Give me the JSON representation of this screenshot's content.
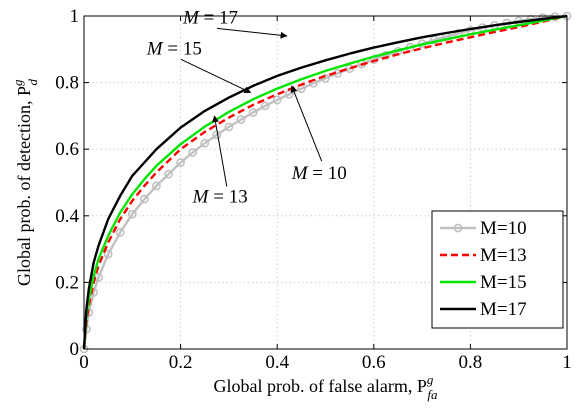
{
  "chart_data": {
    "type": "line",
    "xlabel": "Global prob. of false alarm, P",
    "xlabel_sup": "g",
    "xlabel_sub": "fa",
    "ylabel": "Global prob. of detection, P",
    "ylabel_sup": "g",
    "ylabel_sub": "d",
    "xlim": [
      0,
      1
    ],
    "ylim": [
      0,
      1
    ],
    "xticks": [
      "0",
      "0.2",
      "0.4",
      "0.6",
      "0.8",
      "1"
    ],
    "yticks": [
      "0",
      "0.2",
      "0.4",
      "0.6",
      "0.8",
      "1"
    ],
    "grid": true,
    "legend_position": "bottom-right",
    "series": [
      {
        "name": "M=10",
        "color": "#c0c0c0",
        "style": "solid-circle-markers",
        "x": [
          0,
          0.005,
          0.01,
          0.02,
          0.03,
          0.05,
          0.075,
          0.1,
          0.125,
          0.15,
          0.175,
          0.2,
          0.225,
          0.25,
          0.275,
          0.3,
          0.325,
          0.35,
          0.375,
          0.4,
          0.425,
          0.45,
          0.475,
          0.5,
          0.525,
          0.55,
          0.575,
          0.6,
          0.625,
          0.65,
          0.675,
          0.7,
          0.725,
          0.75,
          0.775,
          0.8,
          0.825,
          0.85,
          0.875,
          0.9,
          0.925,
          0.95,
          0.975,
          1
        ],
        "y": [
          0,
          0.06,
          0.11,
          0.17,
          0.215,
          0.285,
          0.35,
          0.405,
          0.45,
          0.49,
          0.525,
          0.56,
          0.59,
          0.618,
          0.643,
          0.667,
          0.689,
          0.71,
          0.73,
          0.748,
          0.765,
          0.782,
          0.798,
          0.813,
          0.828,
          0.842,
          0.856,
          0.869,
          0.882,
          0.894,
          0.906,
          0.917,
          0.928,
          0.938,
          0.948,
          0.957,
          0.965,
          0.972,
          0.979,
          0.985,
          0.99,
          0.995,
          0.998,
          1
        ]
      },
      {
        "name": "M=13",
        "color": "#ff0000",
        "style": "dashed",
        "x": [
          0,
          0.005,
          0.01,
          0.02,
          0.03,
          0.05,
          0.075,
          0.1,
          0.125,
          0.15,
          0.2,
          0.25,
          0.3,
          0.35,
          0.4,
          0.45,
          0.5,
          0.55,
          0.6,
          0.65,
          0.7,
          0.75,
          0.8,
          0.85,
          0.9,
          0.95,
          1
        ],
        "y": [
          0,
          0.08,
          0.13,
          0.2,
          0.25,
          0.32,
          0.39,
          0.445,
          0.49,
          0.53,
          0.6,
          0.652,
          0.695,
          0.733,
          0.765,
          0.794,
          0.82,
          0.843,
          0.865,
          0.885,
          0.903,
          0.92,
          0.936,
          0.952,
          0.967,
          0.983,
          1
        ]
      },
      {
        "name": "M=15",
        "color": "#00e600",
        "style": "solid",
        "x": [
          0,
          0.005,
          0.01,
          0.02,
          0.03,
          0.05,
          0.075,
          0.1,
          0.125,
          0.15,
          0.2,
          0.25,
          0.3,
          0.35,
          0.4,
          0.45,
          0.5,
          0.55,
          0.6,
          0.65,
          0.7,
          0.75,
          0.8,
          0.85,
          0.9,
          0.95,
          1
        ],
        "y": [
          0,
          0.1,
          0.15,
          0.22,
          0.27,
          0.34,
          0.41,
          0.465,
          0.51,
          0.55,
          0.615,
          0.668,
          0.712,
          0.75,
          0.782,
          0.81,
          0.835,
          0.857,
          0.878,
          0.897,
          0.914,
          0.93,
          0.945,
          0.959,
          0.972,
          0.986,
          1
        ]
      },
      {
        "name": "M=17",
        "color": "#000000",
        "style": "solid",
        "x": [
          0,
          0.005,
          0.01,
          0.02,
          0.03,
          0.05,
          0.075,
          0.1,
          0.125,
          0.15,
          0.2,
          0.25,
          0.3,
          0.35,
          0.4,
          0.45,
          0.5,
          0.55,
          0.6,
          0.65,
          0.7,
          0.75,
          0.8,
          0.85,
          0.9,
          0.95,
          1
        ],
        "y": [
          0,
          0.12,
          0.18,
          0.26,
          0.31,
          0.39,
          0.46,
          0.52,
          0.56,
          0.6,
          0.665,
          0.715,
          0.755,
          0.79,
          0.82,
          0.845,
          0.867,
          0.887,
          0.905,
          0.921,
          0.936,
          0.949,
          0.961,
          0.972,
          0.982,
          0.991,
          1
        ]
      }
    ],
    "annotations": [
      {
        "label": "M",
        "value": "= 17",
        "text_x": 0.205,
        "text_y": 0.978,
        "arrow_x": 0.42,
        "arrow_y": 0.94
      },
      {
        "label": "M",
        "value": "= 15",
        "text_x": 0.13,
        "text_y": 0.885,
        "arrow_x": 0.345,
        "arrow_y": 0.77
      },
      {
        "label": "M",
        "value": "= 10",
        "text_x": 0.43,
        "text_y": 0.51,
        "arrow_x": 0.43,
        "arrow_y": 0.79
      },
      {
        "label": "M",
        "value": "= 13",
        "text_x": 0.225,
        "text_y": 0.44,
        "arrow_x": 0.27,
        "arrow_y": 0.7
      }
    ]
  }
}
